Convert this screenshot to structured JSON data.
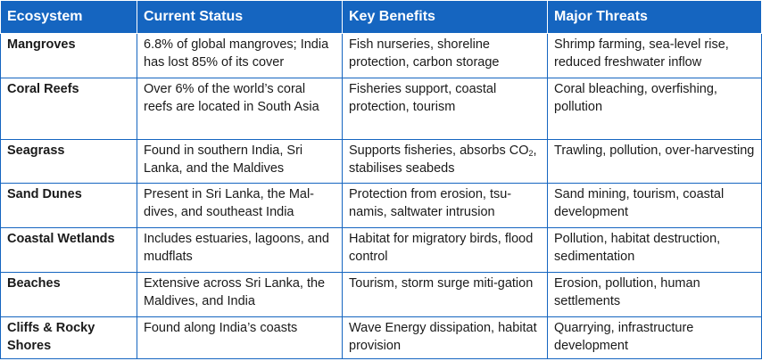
{
  "table": {
    "headers": [
      "Ecosystem",
      "Current Status",
      "Key Benefits",
      "Major Threats"
    ],
    "rows": [
      {
        "ecosystem": "Mangroves",
        "status": "6.8% of global mangroves; India has lost 85% of its cover",
        "benefits": "Fish nurseries, shoreline protection, carbon storage",
        "threats": "Shrimp farming, sea-level rise, reduced freshwater inflow"
      },
      {
        "ecosystem": "Coral Reefs",
        "status": "Over 6% of the world’s coral reefs are located in South Asia",
        "benefits": "Fisheries support, coastal protection, tourism",
        "threats": "Coral bleaching, overfishing, pollution"
      },
      {
        "ecosystem": "Seagrass",
        "status": "Found in southern India, Sri Lanka, and the Maldives",
        "benefits_pre": "Supports fisheries, absorbs CO",
        "benefits_sub": "2",
        "benefits_post": ", stabilises seabeds",
        "threats": "Trawling, pollution, over-harvesting"
      },
      {
        "ecosystem": "Sand Dunes",
        "status": "Present in Sri Lanka, the Mal-dives, and southeast India",
        "benefits": "Protection from erosion, tsu-namis, saltwater intrusion",
        "threats": "Sand mining, tourism, coastal development"
      },
      {
        "ecosystem": "Coastal Wetlands",
        "status": "Includes estuaries, lagoons, and mudflats",
        "benefits": "Habitat for migratory birds, flood control",
        "threats": "Pollution, habitat destruction, sedimentation"
      },
      {
        "ecosystem": "Beaches",
        "status": "Extensive across Sri Lanka, the Maldives, and India",
        "benefits": "Tourism, storm surge miti-gation",
        "threats": "Erosion, pollution, human settlements"
      },
      {
        "ecosystem": "Cliffs & Rocky Shores",
        "status": "Found along India’s coasts",
        "benefits": "Wave Energy dissipation, habitat provision",
        "threats": "Quarrying, infrastructure development"
      }
    ]
  },
  "colors": {
    "header_bg": "#1565c0",
    "header_text": "#ffffff",
    "border": "#1565c0"
  }
}
